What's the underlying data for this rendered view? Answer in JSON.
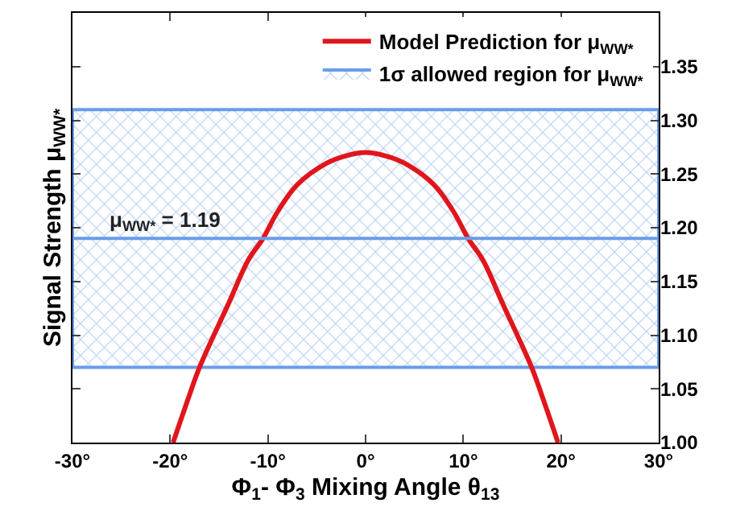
{
  "chart_data": {
    "type": "line",
    "xlabel": "Φ$_{1}$- Φ$_{3}$ Mixing Angle θ$_{13}$",
    "ylabel": "Signal Strength μ$_{WW*}$",
    "x": [
      -19.7,
      -18,
      -17,
      -14,
      -12,
      -10.5,
      -9,
      -7,
      -4,
      -2,
      0,
      2,
      4,
      7,
      9,
      10.5,
      12,
      14,
      17,
      18,
      19.7
    ],
    "series": [
      {
        "name": "Model Prediction for μ$_{WW*}$",
        "color": "#e0161c",
        "values": [
          1.0,
          1.045,
          1.07,
          1.13,
          1.17,
          1.19,
          1.215,
          1.24,
          1.26,
          1.267,
          1.27,
          1.267,
          1.26,
          1.24,
          1.215,
          1.19,
          1.17,
          1.13,
          1.07,
          1.045,
          1.0
        ]
      }
    ],
    "bands": [
      {
        "axis": "y",
        "from": 1.07,
        "to": 1.31,
        "label": "1σ allowed region for μ$_{WW*}$",
        "color": "#6a9ce8"
      }
    ],
    "ref_lines": [
      {
        "axis": "y",
        "value": 1.19,
        "label": "μ$_{WW*}$ = 1.19",
        "color": "#6a9ce8"
      }
    ],
    "xlim": [
      -30,
      30
    ],
    "xticks": [
      {
        "value": -30,
        "label": "-30°"
      },
      {
        "value": -20,
        "label": "-20°"
      },
      {
        "value": -10,
        "label": "-10°"
      },
      {
        "value": 0,
        "label": "0°"
      },
      {
        "value": 10,
        "label": "10°"
      },
      {
        "value": 20,
        "label": "20°"
      },
      {
        "value": 30,
        "label": "30°"
      }
    ],
    "ylim": [
      1.0,
      1.4
    ],
    "yticks": [
      {
        "value": 1.0,
        "label": "1.00"
      },
      1.05,
      {
        "value": 1.1,
        "label": "1.10"
      },
      1.15,
      {
        "value": 1.2,
        "label": "1.20"
      },
      1.25,
      {
        "value": 1.3,
        "label": "1.30"
      },
      1.35
    ],
    "legend": "top right",
    "line_style": "solid",
    "marker": "none"
  }
}
